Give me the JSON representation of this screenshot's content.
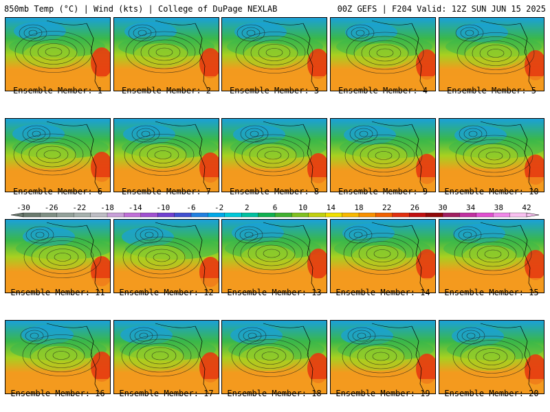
{
  "header": {
    "left": "850mb Temp (°C) | Wind (kts) | College of DuPage NEXLAB",
    "right": "00Z GEFS | F204 Valid: 12Z SUN JUN 15 2025"
  },
  "member_label_prefix": "Ensemble Member: ",
  "members": [
    1,
    2,
    3,
    4,
    5,
    6,
    7,
    8,
    9,
    10,
    11,
    12,
    13,
    14,
    15,
    16,
    17,
    18,
    19,
    20
  ],
  "colorbar": {
    "tick_labels": [
      "-30",
      "-26",
      "-22",
      "-18",
      "-14",
      "-10",
      "-6",
      "-2",
      "2",
      "6",
      "10",
      "14",
      "18",
      "22",
      "26",
      "30",
      "34",
      "38",
      "42"
    ],
    "colors": [
      "#6a7a6e",
      "#7f8f84",
      "#93a19a",
      "#a6b1ad",
      "#bdbdc4",
      "#c8a0d8",
      "#c070d8",
      "#a050d0",
      "#7040d0",
      "#4050d0",
      "#2080e0",
      "#00a8e8",
      "#00c8d8",
      "#00c0a0",
      "#10b050",
      "#40b030",
      "#80c020",
      "#c0d010",
      "#f0e000",
      "#f8b800",
      "#f89000",
      "#f06000",
      "#e03010",
      "#c01010",
      "#900808",
      "#a02060",
      "#c030a0",
      "#e050d0",
      "#f088e8",
      "#f8c0f0"
    ]
  },
  "palette": {
    "warm": "#f39a1e",
    "hot": "#e63a10",
    "cool": "#1aa0d8",
    "green": "#3ab84a",
    "lime": "#a8d020",
    "contour": "#1a1a1a"
  }
}
